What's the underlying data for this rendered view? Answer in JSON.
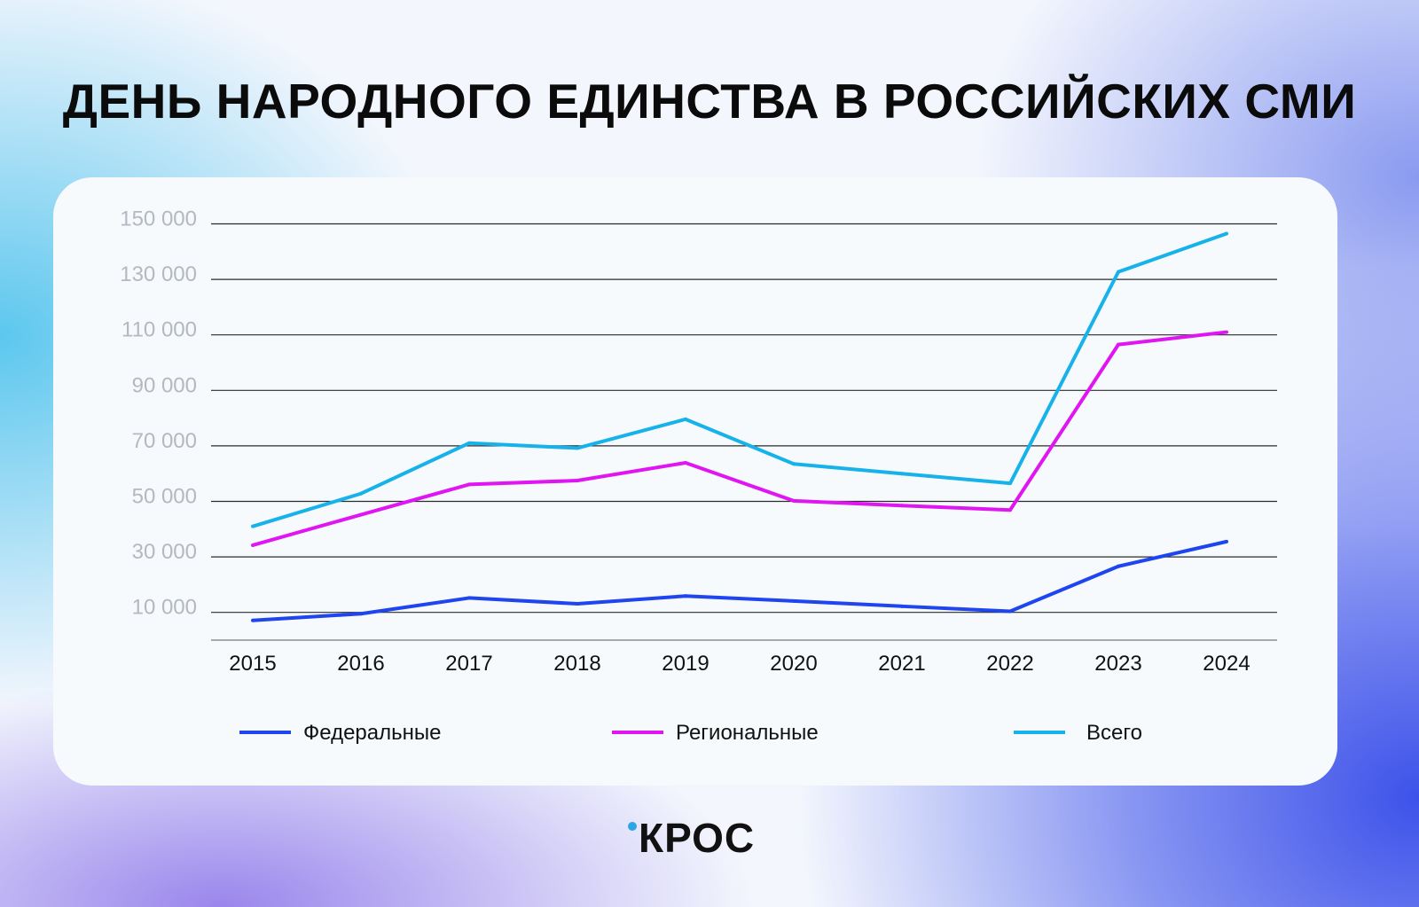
{
  "title": "ДЕНЬ НАРОДНОГО ЕДИНСТВА В РОССИЙСКИХ СМИ",
  "logo": "КРОС",
  "chart_data": {
    "type": "line",
    "title": "ДЕНЬ НАРОДНОГО ЕДИНСТВА В РОССИЙСКИХ СМИ",
    "x": [
      "2015",
      "2016",
      "2017",
      "2018",
      "2019",
      "2020",
      "2021",
      "2022",
      "2023",
      "2024"
    ],
    "ylim": [
      0,
      150000
    ],
    "yticks": [
      10000,
      30000,
      50000,
      70000,
      90000,
      110000,
      130000,
      150000
    ],
    "ytick_labels": [
      "10 000",
      "30 000",
      "50 000",
      "70 000",
      "90 000",
      "110 000",
      "130 000",
      "150 000"
    ],
    "grid": true,
    "legend_position": "bottom",
    "series": [
      {
        "name": "Федеральные",
        "color": "#1f45ee",
        "values": [
          7100,
          9500,
          15200,
          13100,
          15900,
          14100,
          12200,
          10400,
          26600,
          35500
        ]
      },
      {
        "name": "Региональные",
        "color": "#e016f2",
        "values": [
          34200,
          45200,
          56100,
          57500,
          63900,
          50200,
          48500,
          46900,
          106500,
          111000
        ]
      },
      {
        "name": "Всего",
        "color": "#17b2ea",
        "values": [
          41000,
          52800,
          71000,
          69200,
          79600,
          63500,
          60000,
          56500,
          132700,
          146500
        ]
      }
    ]
  }
}
